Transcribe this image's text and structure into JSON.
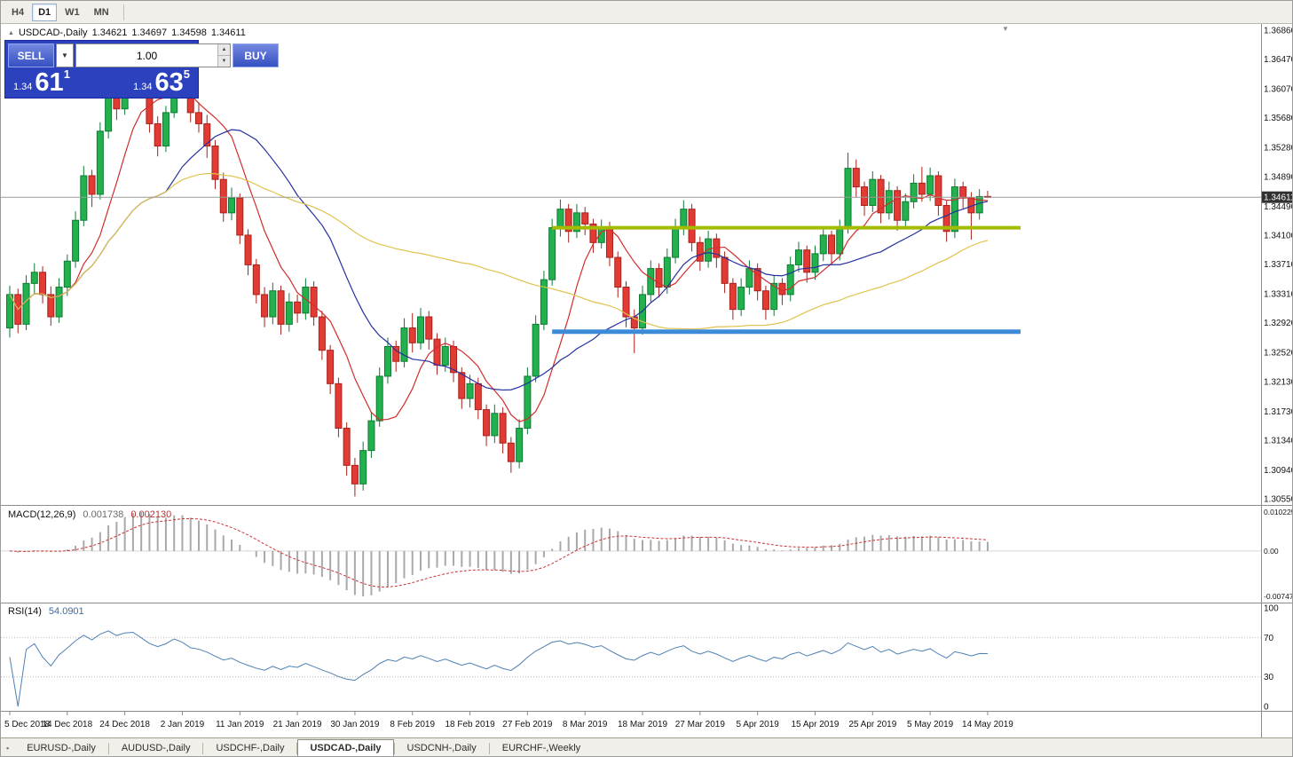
{
  "toolbar": {
    "timeframes": [
      {
        "label": "H4",
        "active": false
      },
      {
        "label": "D1",
        "active": true
      },
      {
        "label": "W1",
        "active": false
      },
      {
        "label": "MN",
        "active": false
      }
    ]
  },
  "chart_header": {
    "symbol": "USDCAD-,Daily",
    "open": "1.34621",
    "high": "1.34697",
    "low": "1.34598",
    "close": "1.34611"
  },
  "trade_panel": {
    "sell_label": "SELL",
    "buy_label": "BUY",
    "volume": "1.00",
    "sell_price_small": "1.34",
    "sell_price_big": "61",
    "sell_price_sup": "1",
    "buy_price_small": "1.34",
    "buy_price_big": "63",
    "buy_price_sup": "5"
  },
  "price_axis": {
    "labels": [
      "1.36860",
      "1.36470",
      "1.36070",
      "1.35680",
      "1.35280",
      "1.34890",
      "1.34490",
      "1.34100",
      "1.33710",
      "1.33310",
      "1.32920",
      "1.32520",
      "1.32130",
      "1.31730",
      "1.31340",
      "1.30940",
      "1.30550"
    ],
    "bid_label": "1.34611"
  },
  "indicators": {
    "macd": {
      "name": "MACD(12,26,9)",
      "value_main": "0.001738",
      "value_signal": "0.002130",
      "scale_top": "0.0102250",
      "scale_zero": "0.00",
      "scale_bottom": "-0.0074750",
      "fast": 12,
      "slow": 26,
      "signal": 9
    },
    "rsi": {
      "name": "RSI(14)",
      "value": "54.0901",
      "period": 14,
      "levels": [
        70,
        30
      ],
      "scale": [
        "100",
        "70",
        "30",
        "0"
      ]
    }
  },
  "chart_data": {
    "type": "candlestick",
    "title": "USDCAD-,Daily",
    "ylim": [
      1.3055,
      1.3686
    ],
    "price_axis_top_value": 1.3686,
    "bid": 1.34611,
    "x_labels": [
      "5 Dec 2018",
      "14 Dec 2018",
      "24 Dec 2018",
      "2 Jan 2019",
      "11 Jan 2019",
      "21 Jan 2019",
      "30 Jan 2019",
      "8 Feb 2019",
      "18 Feb 2019",
      "27 Feb 2019",
      "8 Mar 2019",
      "18 Mar 2019",
      "27 Mar 2019",
      "5 Apr 2019",
      "15 Apr 2019",
      "25 Apr 2019",
      "5 May 2019",
      "14 May 2019"
    ],
    "x_label_bars": [
      0,
      7,
      14,
      21,
      28,
      35,
      42,
      49,
      56,
      63,
      70,
      77,
      84,
      91,
      98,
      105,
      112,
      119
    ],
    "moving_averages": [
      {
        "period": 8,
        "color": "#d22d2d"
      },
      {
        "period": 20,
        "color": "#24309e"
      },
      {
        "period": 55,
        "color": "#dfc24f"
      }
    ],
    "levels": [
      {
        "price": 1.342,
        "color": "#a3bc00",
        "width": 4,
        "from_bar": 66,
        "to_bar": 123
      },
      {
        "price": 1.328,
        "color": "#3c8bd9",
        "width": 5,
        "from_bar": 66,
        "to_bar": 123
      }
    ],
    "candles": [
      [
        1.3285,
        1.3342,
        1.3272,
        1.333
      ],
      [
        1.333,
        1.3338,
        1.3278,
        1.329
      ],
      [
        1.329,
        1.3356,
        1.3282,
        1.3345
      ],
      [
        1.3345,
        1.3372,
        1.333,
        1.336
      ],
      [
        1.336,
        1.3368,
        1.3318,
        1.333
      ],
      [
        1.333,
        1.3341,
        1.3288,
        1.33
      ],
      [
        1.33,
        1.3352,
        1.3292,
        1.334
      ],
      [
        1.334,
        1.3384,
        1.3328,
        1.3375
      ],
      [
        1.3375,
        1.3442,
        1.3366,
        1.343
      ],
      [
        1.343,
        1.3503,
        1.3422,
        1.349
      ],
      [
        1.349,
        1.3498,
        1.3448,
        1.3465
      ],
      [
        1.3465,
        1.3562,
        1.3458,
        1.355
      ],
      [
        1.355,
        1.3628,
        1.354,
        1.3615
      ],
      [
        1.3615,
        1.3624,
        1.3565,
        1.358
      ],
      [
        1.358,
        1.3652,
        1.3572,
        1.364
      ],
      [
        1.364,
        1.3666,
        1.3625,
        1.3655
      ],
      [
        1.3655,
        1.3662,
        1.3596,
        1.361
      ],
      [
        1.361,
        1.3618,
        1.3548,
        1.356
      ],
      [
        1.356,
        1.357,
        1.3516,
        1.353
      ],
      [
        1.353,
        1.3584,
        1.3522,
        1.3575
      ],
      [
        1.3575,
        1.3666,
        1.3568,
        1.366
      ],
      [
        1.366,
        1.3664,
        1.3614,
        1.363
      ],
      [
        1.363,
        1.3638,
        1.3562,
        1.3575
      ],
      [
        1.3575,
        1.3589,
        1.3548,
        1.356
      ],
      [
        1.356,
        1.3572,
        1.3514,
        1.353
      ],
      [
        1.353,
        1.3538,
        1.3472,
        1.3485
      ],
      [
        1.3485,
        1.3494,
        1.3428,
        1.344
      ],
      [
        1.344,
        1.3474,
        1.343,
        1.346
      ],
      [
        1.346,
        1.3466,
        1.3398,
        1.341
      ],
      [
        1.341,
        1.3418,
        1.3356,
        1.337
      ],
      [
        1.337,
        1.3378,
        1.3318,
        1.333
      ],
      [
        1.333,
        1.334,
        1.3286,
        1.33
      ],
      [
        1.33,
        1.3346,
        1.329,
        1.3335
      ],
      [
        1.3335,
        1.3342,
        1.3276,
        1.329
      ],
      [
        1.329,
        1.3332,
        1.328,
        1.332
      ],
      [
        1.332,
        1.333,
        1.3292,
        1.3305
      ],
      [
        1.3305,
        1.3352,
        1.3296,
        1.334
      ],
      [
        1.334,
        1.3348,
        1.3288,
        1.33
      ],
      [
        1.33,
        1.3308,
        1.3242,
        1.3255
      ],
      [
        1.3255,
        1.3262,
        1.3196,
        1.321
      ],
      [
        1.321,
        1.3218,
        1.3138,
        1.315
      ],
      [
        1.315,
        1.3158,
        1.3086,
        1.31
      ],
      [
        1.31,
        1.311,
        1.3058,
        1.3075
      ],
      [
        1.3075,
        1.3132,
        1.3066,
        1.312
      ],
      [
        1.312,
        1.3172,
        1.311,
        1.316
      ],
      [
        1.316,
        1.3232,
        1.3152,
        1.322
      ],
      [
        1.322,
        1.3272,
        1.321,
        1.326
      ],
      [
        1.326,
        1.3268,
        1.3226,
        1.324
      ],
      [
        1.324,
        1.3298,
        1.3232,
        1.3285
      ],
      [
        1.3285,
        1.3305,
        1.3252,
        1.3265
      ],
      [
        1.3265,
        1.3312,
        1.3256,
        1.33
      ],
      [
        1.33,
        1.3308,
        1.3256,
        1.327
      ],
      [
        1.327,
        1.3278,
        1.3222,
        1.3235
      ],
      [
        1.3235,
        1.3272,
        1.3226,
        1.326
      ],
      [
        1.326,
        1.3268,
        1.3212,
        1.3225
      ],
      [
        1.3225,
        1.3232,
        1.3176,
        1.319
      ],
      [
        1.319,
        1.3222,
        1.3178,
        1.321
      ],
      [
        1.321,
        1.3218,
        1.3162,
        1.3175
      ],
      [
        1.3175,
        1.3182,
        1.3126,
        1.314
      ],
      [
        1.314,
        1.3182,
        1.313,
        1.317
      ],
      [
        1.317,
        1.3178,
        1.3116,
        1.313
      ],
      [
        1.313,
        1.3138,
        1.309,
        1.3105
      ],
      [
        1.3105,
        1.3162,
        1.3096,
        1.315
      ],
      [
        1.315,
        1.3232,
        1.3142,
        1.322
      ],
      [
        1.322,
        1.3302,
        1.3212,
        1.329
      ],
      [
        1.329,
        1.3362,
        1.3282,
        1.335
      ],
      [
        1.335,
        1.3432,
        1.3342,
        1.342
      ],
      [
        1.342,
        1.3458,
        1.3408,
        1.3445
      ],
      [
        1.3445,
        1.3452,
        1.34,
        1.3415
      ],
      [
        1.3415,
        1.3452,
        1.3406,
        1.344
      ],
      [
        1.344,
        1.3448,
        1.341,
        1.3425
      ],
      [
        1.3425,
        1.3432,
        1.3386,
        1.34
      ],
      [
        1.34,
        1.3431,
        1.3392,
        1.342
      ],
      [
        1.342,
        1.3428,
        1.3368,
        1.338
      ],
      [
        1.338,
        1.3388,
        1.3326,
        1.334
      ],
      [
        1.334,
        1.3348,
        1.3286,
        1.33
      ],
      [
        1.33,
        1.331,
        1.3251,
        1.3285
      ],
      [
        1.3285,
        1.3342,
        1.3276,
        1.333
      ],
      [
        1.333,
        1.3376,
        1.332,
        1.3365
      ],
      [
        1.3365,
        1.3372,
        1.3326,
        1.334
      ],
      [
        1.334,
        1.3392,
        1.3331,
        1.338
      ],
      [
        1.338,
        1.3432,
        1.3372,
        1.342
      ],
      [
        1.342,
        1.3457,
        1.341,
        1.3445
      ],
      [
        1.3445,
        1.3452,
        1.3388,
        1.34
      ],
      [
        1.34,
        1.3408,
        1.3362,
        1.3375
      ],
      [
        1.3375,
        1.3416,
        1.3366,
        1.3405
      ],
      [
        1.3405,
        1.3412,
        1.3366,
        1.338
      ],
      [
        1.338,
        1.3388,
        1.3332,
        1.3345
      ],
      [
        1.3345,
        1.3352,
        1.3296,
        1.331
      ],
      [
        1.331,
        1.3352,
        1.3301,
        1.334
      ],
      [
        1.334,
        1.3376,
        1.333,
        1.3365
      ],
      [
        1.3365,
        1.3372,
        1.3322,
        1.3335
      ],
      [
        1.3335,
        1.3342,
        1.3296,
        1.331
      ],
      [
        1.331,
        1.3356,
        1.3301,
        1.3345
      ],
      [
        1.3345,
        1.3352,
        1.3316,
        1.333
      ],
      [
        1.333,
        1.3381,
        1.3321,
        1.337
      ],
      [
        1.337,
        1.3401,
        1.336,
        1.339
      ],
      [
        1.339,
        1.3396,
        1.3346,
        1.336
      ],
      [
        1.336,
        1.3396,
        1.335,
        1.3385
      ],
      [
        1.3385,
        1.3421,
        1.3375,
        1.341
      ],
      [
        1.341,
        1.3416,
        1.3371,
        1.3385
      ],
      [
        1.3385,
        1.3431,
        1.3376,
        1.342
      ],
      [
        1.342,
        1.3521,
        1.3412,
        1.35
      ],
      [
        1.35,
        1.3512,
        1.3461,
        1.3475
      ],
      [
        1.3475,
        1.3482,
        1.3436,
        1.345
      ],
      [
        1.345,
        1.3496,
        1.3441,
        1.3485
      ],
      [
        1.3485,
        1.3491,
        1.3426,
        1.344
      ],
      [
        1.344,
        1.3482,
        1.3431,
        1.347
      ],
      [
        1.347,
        1.3476,
        1.3416,
        1.343
      ],
      [
        1.343,
        1.3466,
        1.342,
        1.3455
      ],
      [
        1.3455,
        1.3492,
        1.3446,
        1.348
      ],
      [
        1.348,
        1.3502,
        1.3455,
        1.3465
      ],
      [
        1.3465,
        1.3501,
        1.3456,
        1.349
      ],
      [
        1.349,
        1.3496,
        1.3436,
        1.345
      ],
      [
        1.345,
        1.3456,
        1.3401,
        1.3415
      ],
      [
        1.3415,
        1.3486,
        1.3406,
        1.3475
      ],
      [
        1.3475,
        1.3482,
        1.3446,
        1.346
      ],
      [
        1.346,
        1.3468,
        1.3404,
        1.344
      ],
      [
        1.344,
        1.3472,
        1.3431,
        1.3462
      ],
      [
        1.34621,
        1.34697,
        1.34598,
        1.34611
      ]
    ]
  },
  "tabs": [
    {
      "label": "EURUSD-,Daily",
      "active": false
    },
    {
      "label": "AUDUSD-,Daily",
      "active": false
    },
    {
      "label": "USDCHF-,Daily",
      "active": false
    },
    {
      "label": "USDCAD-,Daily",
      "active": true
    },
    {
      "label": "USDCNH-,Daily",
      "active": false
    },
    {
      "label": "EURCHF-,Weekly",
      "active": false
    }
  ],
  "colors": {
    "bull": "#22b14c",
    "bull_edge": "#0e7a33",
    "bear": "#e23b34",
    "bear_edge": "#a8211b",
    "macd_hist": "#a9a9a9",
    "macd_signal": "#cc3333",
    "rsi": "#4e80b4",
    "bid_line": "#9a9a9a",
    "badge_bg": "#303030"
  }
}
